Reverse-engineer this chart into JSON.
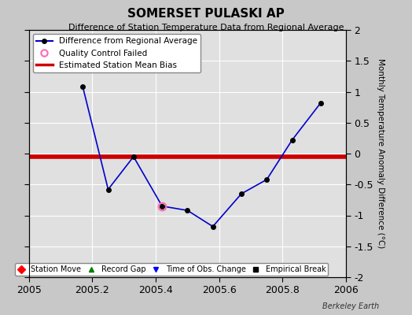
{
  "title": "SOMERSET PULASKI AP",
  "subtitle": "Difference of Station Temperature Data from Regional Average",
  "ylabel": "Monthly Temperature Anomaly Difference (°C)",
  "xlim": [
    2005.0,
    2006.0
  ],
  "ylim": [
    -2.0,
    2.0
  ],
  "yticks": [
    -2,
    -1.5,
    -1,
    -0.5,
    0,
    0.5,
    1,
    1.5,
    2
  ],
  "xticks": [
    2005,
    2005.2,
    2005.4,
    2005.6,
    2005.8,
    2006
  ],
  "xtick_labels": [
    "2005",
    "2005.2",
    "2005.4",
    "2005.6",
    "2005.8",
    "2006"
  ],
  "line_x": [
    2005.17,
    2005.25,
    2005.33,
    2005.42,
    2005.5,
    2005.58,
    2005.67,
    2005.75,
    2005.83,
    2005.92
  ],
  "line_y": [
    1.08,
    -0.58,
    -0.05,
    -0.85,
    -0.92,
    -1.18,
    -0.65,
    -0.42,
    0.22,
    0.82
  ],
  "qc_failed_x": [
    2005.42
  ],
  "qc_failed_y": [
    -0.85
  ],
  "bias_y": -0.05,
  "background_color": "#c8c8c8",
  "plot_bg_color": "#e0e0e0",
  "line_color": "#0000cc",
  "bias_color": "#cc0000",
  "qc_color": "#ff69b4",
  "point_color": "#000000",
  "grid_color": "#ffffff",
  "watermark": "Berkeley Earth"
}
